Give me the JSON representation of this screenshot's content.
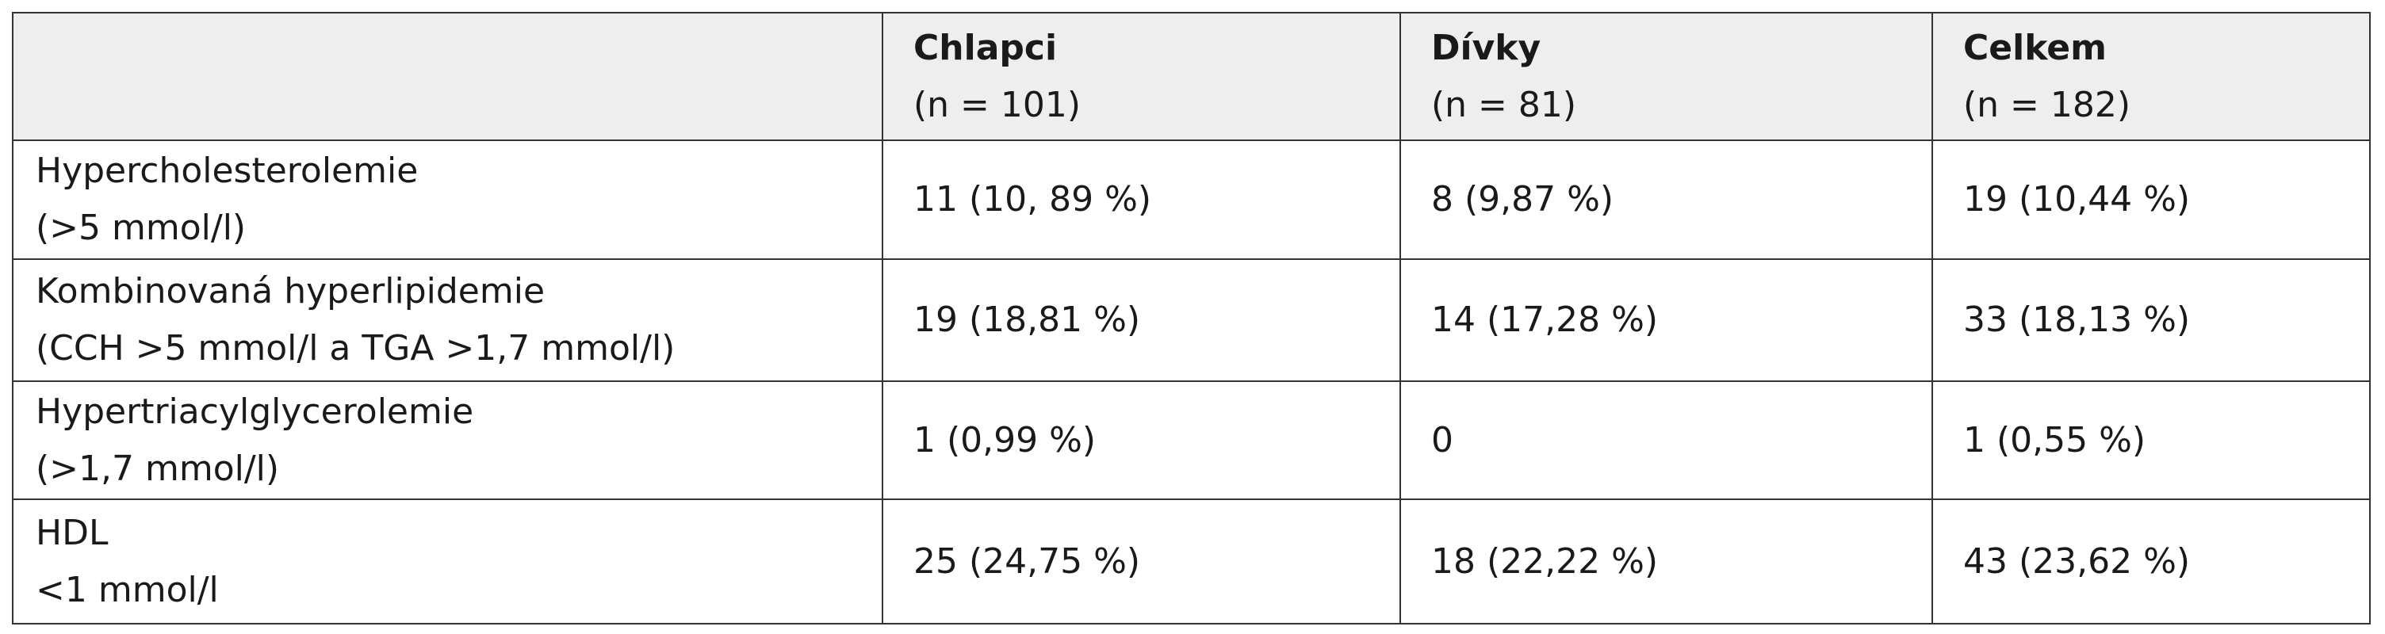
{
  "table": {
    "columns": [
      {
        "name": "Chlapci",
        "n": "(n = 101)"
      },
      {
        "name": "Dívky",
        "n": "(n = 81)"
      },
      {
        "name": "Celkem",
        "n": "(n = 182)"
      }
    ],
    "rows": [
      {
        "label": [
          "Hypercholesterolemie",
          "(>5 mmol/l)"
        ],
        "values": [
          "11 (10, 89 %)",
          "8 (9,87 %)",
          "19 (10,44 %)"
        ]
      },
      {
        "label": [
          "Kombinovaná hyperlipidemie",
          "(CCH >5 mmol/l a TGA >1,7 mmol/l)"
        ],
        "values": [
          "19 (18,81 %)",
          "14 (17,28 %)",
          "33 (18,13 %)"
        ]
      },
      {
        "label": [
          "Hypertriacylglycerolemie",
          "(>1,7 mmol/l)"
        ],
        "values": [
          "1 (0,99 %)",
          "0",
          "1 (0,55 %)"
        ]
      },
      {
        "label": [
          "HDL",
          "<1 mmol/l"
        ],
        "values": [
          "25 (24,75 %)",
          "18 (22,22 %)",
          "43 (23,62 %)"
        ]
      }
    ]
  }
}
